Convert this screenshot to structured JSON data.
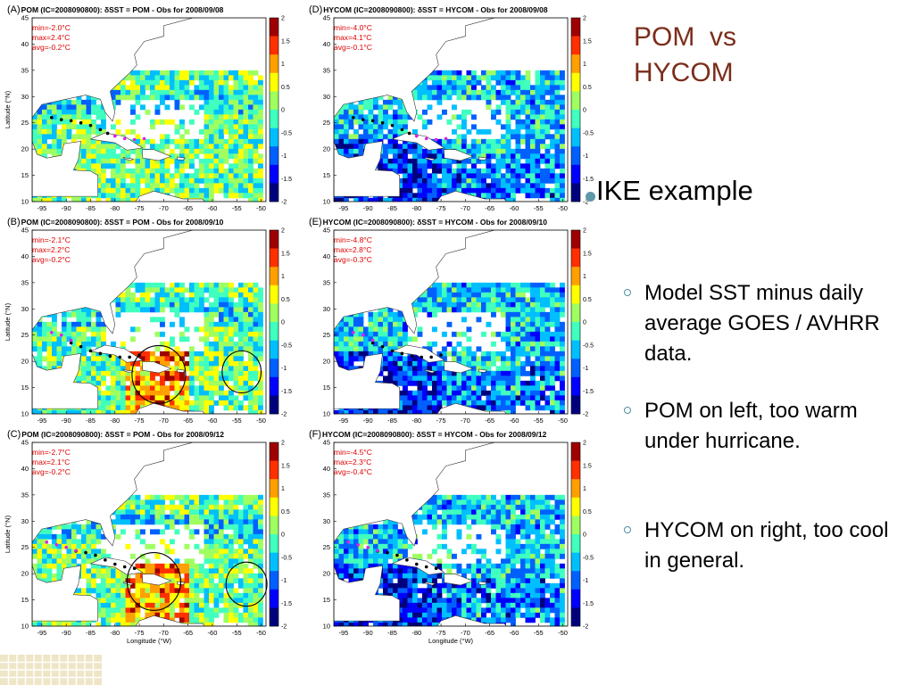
{
  "slide": {
    "title_line1": "POM  vs",
    "title_line2": "HYCOM",
    "bullet_main": "IKE example",
    "sub_bullets": [
      "Model SST minus daily average GOES / AVHRR data.",
      "POM on left, too warm under hurricane.",
      "HYCOM on right, too cool in general."
    ]
  },
  "colors": {
    "title": "#7b2d1a",
    "bullet_dot": "#5f98a8",
    "stats_text": "#e00000",
    "track_black": "#000000",
    "track_magenta": "#e020e0"
  },
  "axes": {
    "y_label": "Latitude (°N)",
    "x_label": "Longitude (°W)",
    "x_ticks": [
      "-95",
      "-90",
      "-85",
      "-80",
      "-75",
      "-70",
      "-65",
      "-60",
      "-55",
      "-50"
    ],
    "y_ticks": [
      "45",
      "40",
      "35",
      "30",
      "25",
      "20",
      "15",
      "10"
    ],
    "colorbar_ticks": [
      "2",
      "1.5",
      "1",
      "0.5",
      "0",
      "-0.5",
      "-1",
      "-1.5",
      "-2"
    ]
  },
  "panels": [
    {
      "id": "A",
      "letter": "(A)",
      "title": "POM (IC=2008090800): δSST = POM - Obs for 2008/09/08",
      "min": "min=-2.0°C",
      "max": "max=2.4°C",
      "avg": "avg=-0.2°C",
      "model": "pom",
      "circles": [],
      "show_xlabel": false,
      "show_ylabel": true
    },
    {
      "id": "D",
      "letter": "(D)",
      "title": "HYCOM (IC=2008090800): δSST = HYCOM - Obs for 2008/09/08",
      "min": "min=-4.0°C",
      "max": "max=4.1°C",
      "avg": "avg=-0.1°C",
      "model": "hycom",
      "circles": [],
      "show_xlabel": false,
      "show_ylabel": false
    },
    {
      "id": "B",
      "letter": "(B)",
      "title": "POM (IC=2008090800): δSST = POM - Obs for 2008/09/10",
      "min": "min=-2.1°C",
      "max": "max=2.2°C",
      "avg": "avg=-0.2°C",
      "model": "pom",
      "circles": [
        {
          "lon": -71,
          "lat": 17.5,
          "r": 5.5
        },
        {
          "lon": -54,
          "lat": 18,
          "r": 4
        }
      ],
      "show_xlabel": false,
      "show_ylabel": true
    },
    {
      "id": "E",
      "letter": "(E)",
      "title": "HYCOM (IC=2008090800): δSST = HYCOM - Obs for 2008/09/10",
      "min": "min=-4.8°C",
      "max": "max=2.8°C",
      "avg": "avg=-0.3°C",
      "model": "hycom",
      "circles": [],
      "show_xlabel": false,
      "show_ylabel": false
    },
    {
      "id": "C",
      "letter": "(C)",
      "title": "POM (IC=2008090800): δSST = POM - Obs for 2008/09/12",
      "min": "min=-2.7°C",
      "max": "max=2.1°C",
      "avg": "avg=-0.2°C",
      "model": "pom",
      "circles": [
        {
          "lon": -72,
          "lat": 18.5,
          "r": 5.5
        },
        {
          "lon": -53,
          "lat": 18,
          "r": 4.2
        }
      ],
      "show_xlabel": true,
      "show_ylabel": true
    },
    {
      "id": "F",
      "letter": "(F)",
      "title": "HYCOM (IC=2008090800): δSST = HYCOM - Obs for 2008/09/12",
      "min": "min=-4.5°C",
      "max": "max=2.3°C",
      "avg": "avg=-0.4°C",
      "model": "hycom",
      "circles": [],
      "show_xlabel": true,
      "show_ylabel": false
    }
  ]
}
